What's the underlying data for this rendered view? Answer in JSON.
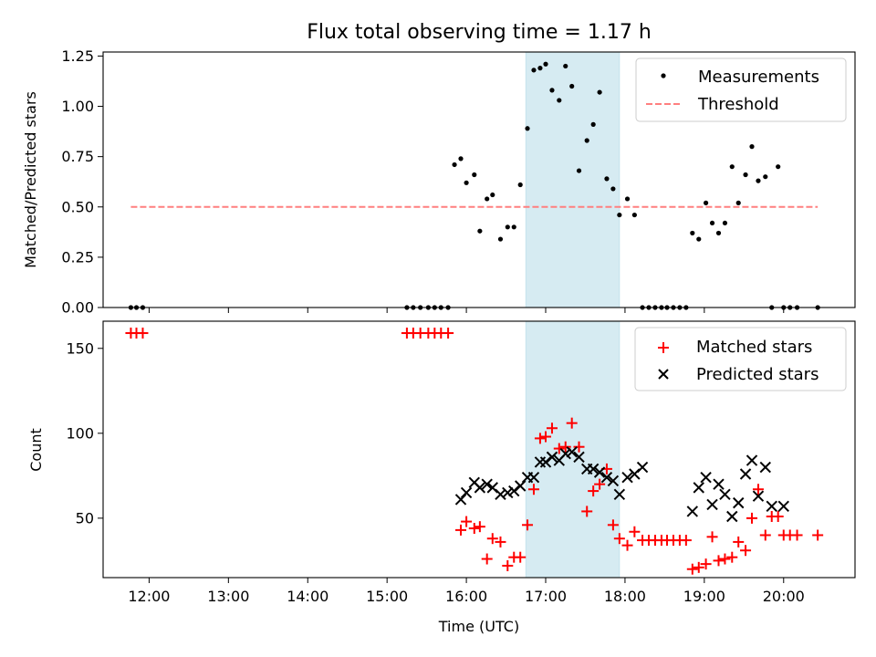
{
  "chart_data": [
    {
      "type": "scatter",
      "title": "Flux total observing time = 1.17 h",
      "xlabel": "",
      "ylabel": "Matched/Predicted stars",
      "xlim": [
        11.42,
        20.9
      ],
      "ylim": [
        0,
        1.27
      ],
      "yticks": [
        0.0,
        0.25,
        0.5,
        0.75,
        1.0,
        1.25
      ],
      "ytick_labels": [
        "0.00",
        "0.25",
        "0.50",
        "0.75",
        "1.00",
        "1.25"
      ],
      "shaded_span": [
        16.75,
        17.93
      ],
      "legend_position": "upper right",
      "series": [
        {
          "name": "Measurements",
          "marker": "dot",
          "color": "#000000",
          "x": [
            11.77,
            11.84,
            11.92,
            15.25,
            15.33,
            15.42,
            15.52,
            15.6,
            15.68,
            15.77,
            15.85,
            15.93,
            16.0,
            16.1,
            16.17,
            16.26,
            16.33,
            16.43,
            16.52,
            16.6,
            16.68,
            16.77,
            16.85,
            16.93,
            17.0,
            17.08,
            17.17,
            17.25,
            17.33,
            17.42,
            17.52,
            17.6,
            17.68,
            17.77,
            17.85,
            17.93,
            18.03,
            18.12,
            18.22,
            18.3,
            18.38,
            18.46,
            18.53,
            18.61,
            18.69,
            18.77,
            18.85,
            18.93,
            19.02,
            19.1,
            19.18,
            19.26,
            19.35,
            19.43,
            19.52,
            19.6,
            19.68,
            19.77,
            19.85,
            19.93,
            20.0,
            20.08,
            20.17,
            20.43
          ],
          "y": [
            0,
            0,
            0,
            0,
            0,
            0,
            0,
            0,
            0,
            0,
            0.71,
            0.74,
            0.62,
            0.66,
            0.38,
            0.54,
            0.56,
            0.34,
            0.4,
            0.4,
            0.61,
            0.89,
            1.18,
            1.19,
            1.21,
            1.08,
            1.03,
            1.2,
            1.1,
            0.68,
            0.83,
            0.91,
            1.07,
            0.64,
            0.59,
            0.46,
            0.54,
            0.46,
            0,
            0,
            0,
            0,
            0,
            0,
            0,
            0,
            0.37,
            0.34,
            0.52,
            0.42,
            0.37,
            0.42,
            0.7,
            0.52,
            0.66,
            0.8,
            0.63,
            0.65,
            0,
            0.7,
            0,
            0,
            0,
            0
          ]
        },
        {
          "name": "Threshold",
          "marker": "dashed-line",
          "color": "#ff7f7f",
          "x": [
            11.77,
            20.43
          ],
          "y": [
            0.5,
            0.5
          ]
        }
      ]
    },
    {
      "type": "scatter",
      "title": "",
      "xlabel": "Time (UTC)",
      "ylabel": "Count",
      "xlim": [
        11.42,
        20.9
      ],
      "ylim": [
        15,
        166
      ],
      "yticks": [
        50,
        100,
        150
      ],
      "ytick_labels": [
        "50",
        "100",
        "150"
      ],
      "xticks": [
        12,
        13,
        14,
        15,
        16,
        17,
        18,
        19,
        20
      ],
      "xtick_labels": [
        "12:00",
        "13:00",
        "14:00",
        "15:00",
        "16:00",
        "17:00",
        "18:00",
        "19:00",
        "20:00"
      ],
      "shaded_span": [
        16.75,
        17.93
      ],
      "legend_position": "upper right",
      "series": [
        {
          "name": "Matched stars",
          "marker": "plus",
          "color": "#ff0000",
          "x": [
            11.77,
            11.84,
            11.92,
            15.25,
            15.33,
            15.42,
            15.52,
            15.6,
            15.68,
            15.77,
            15.93,
            16.0,
            16.1,
            16.17,
            16.26,
            16.33,
            16.43,
            16.52,
            16.6,
            16.68,
            16.77,
            16.85,
            16.93,
            17.0,
            17.08,
            17.17,
            17.25,
            17.33,
            17.42,
            17.52,
            17.6,
            17.68,
            17.77,
            17.85,
            17.93,
            18.03,
            18.12,
            18.22,
            18.3,
            18.38,
            18.46,
            18.53,
            18.61,
            18.69,
            18.77,
            18.85,
            18.93,
            19.02,
            19.1,
            19.18,
            19.26,
            19.35,
            19.43,
            19.52,
            19.6,
            19.68,
            19.77,
            19.85,
            19.93,
            20.0,
            20.08,
            20.17,
            20.43
          ],
          "y": [
            159,
            159,
            159,
            159,
            159,
            159,
            159,
            159,
            159,
            159,
            43,
            48,
            44,
            45,
            26,
            38,
            36,
            22,
            27,
            27,
            46,
            67,
            97,
            98,
            103,
            91,
            92,
            106,
            92,
            54,
            66,
            70,
            79,
            46,
            38,
            34,
            42,
            37,
            37,
            37,
            37,
            37,
            37,
            37,
            37,
            20,
            21,
            23,
            39,
            25,
            26,
            27,
            36,
            31,
            50,
            67,
            40,
            51,
            51,
            40,
            40,
            40,
            40
          ]
        },
        {
          "name": "Predicted stars",
          "marker": "x",
          "color": "#000000",
          "x": [
            15.93,
            16.0,
            16.1,
            16.17,
            16.26,
            16.33,
            16.43,
            16.52,
            16.6,
            16.68,
            16.77,
            16.85,
            16.93,
            17.0,
            17.08,
            17.17,
            17.25,
            17.33,
            17.42,
            17.52,
            17.6,
            17.68,
            17.77,
            17.85,
            17.93,
            18.03,
            18.12,
            18.22,
            18.85,
            18.93,
            19.02,
            19.1,
            19.18,
            19.26,
            19.35,
            19.43,
            19.52,
            19.6,
            19.68,
            19.77,
            19.85,
            20.0
          ],
          "y": [
            61,
            65,
            71,
            68,
            70,
            68,
            64,
            65,
            66,
            69,
            74,
            74,
            83,
            83,
            86,
            84,
            88,
            89,
            86,
            79,
            79,
            77,
            74,
            72,
            64,
            74,
            76,
            80,
            54,
            68,
            74,
            58,
            70,
            64,
            51,
            59,
            76,
            84,
            63,
            80,
            57,
            57
          ]
        }
      ]
    }
  ],
  "colors": {
    "span": "#add8e6",
    "axes": "#000000"
  }
}
